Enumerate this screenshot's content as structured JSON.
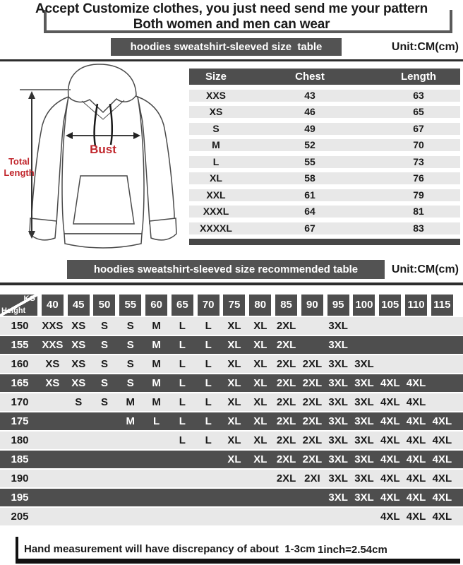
{
  "header": {
    "title_line1": "Accept Customize clothes, you just need send me your pattern",
    "title_line2": "Both women and men can wear"
  },
  "size_table_section": {
    "bar_label": "hoodies sweatshirt-sleeved size  table",
    "unit_label": "Unit:CM(cm)"
  },
  "diagram": {
    "bust_label": "Bust",
    "total_length_line1": "Total",
    "total_length_line2": "Length"
  },
  "size_table": {
    "columns": [
      "Size",
      "Chest",
      "Length"
    ],
    "rows": [
      [
        "XXS",
        "43",
        "63"
      ],
      [
        "XS",
        "46",
        "65"
      ],
      [
        "S",
        "49",
        "67"
      ],
      [
        "M",
        "52",
        "70"
      ],
      [
        "L",
        "55",
        "73"
      ],
      [
        "XL",
        "58",
        "76"
      ],
      [
        "XXL",
        "61",
        "79"
      ],
      [
        "XXXL",
        "64",
        "81"
      ],
      [
        "XXXXL",
        "67",
        "83"
      ]
    ]
  },
  "recommended_section": {
    "bar_label": "hoodies sweatshirt-sleeved size recommended table",
    "unit_label": "Unit:CM(cm)"
  },
  "recommended_table": {
    "corner_top_right": "KG",
    "corner_bottom_left": "Height",
    "weights": [
      "40",
      "45",
      "50",
      "55",
      "60",
      "65",
      "70",
      "75",
      "80",
      "85",
      "90",
      "95",
      "100",
      "105",
      "110",
      "115"
    ],
    "rows": [
      {
        "height": "150",
        "sizes": [
          "XXS",
          "XS",
          "S",
          "S",
          "M",
          "L",
          "L",
          "XL",
          "XL",
          "2XL",
          "",
          "3XL",
          "",
          "",
          "",
          ""
        ]
      },
      {
        "height": "155",
        "sizes": [
          "XXS",
          "XS",
          "S",
          "S",
          "M",
          "L",
          "L",
          "XL",
          "XL",
          "2XL",
          "",
          "3XL",
          "",
          "",
          "",
          ""
        ]
      },
      {
        "height": "160",
        "sizes": [
          "XS",
          "XS",
          "S",
          "S",
          "M",
          "L",
          "L",
          "XL",
          "XL",
          "2XL",
          "2XL",
          "3XL",
          "3XL",
          "",
          "",
          ""
        ]
      },
      {
        "height": "165",
        "sizes": [
          "XS",
          "XS",
          "S",
          "S",
          "M",
          "L",
          "L",
          "XL",
          "XL",
          "2XL",
          "2XL",
          "3XL",
          "3XL",
          "4XL",
          "4XL",
          ""
        ]
      },
      {
        "height": "170",
        "sizes": [
          "",
          "S",
          "S",
          "M",
          "M",
          "L",
          "L",
          "XL",
          "XL",
          "2XL",
          "2XL",
          "3XL",
          "3XL",
          "4XL",
          "4XL",
          ""
        ]
      },
      {
        "height": "175",
        "sizes": [
          "",
          "",
          "",
          "M",
          "L",
          "L",
          "L",
          "XL",
          "XL",
          "2XL",
          "2XL",
          "3XL",
          "3XL",
          "4XL",
          "4XL",
          "4XL"
        ]
      },
      {
        "height": "180",
        "sizes": [
          "",
          "",
          "",
          "",
          "",
          "L",
          "L",
          "XL",
          "XL",
          "2XL",
          "2XL",
          "3XL",
          "3XL",
          "4XL",
          "4XL",
          "4XL"
        ]
      },
      {
        "height": "185",
        "sizes": [
          "",
          "",
          "",
          "",
          "",
          "",
          "",
          "XL",
          "XL",
          "2XL",
          "2XL",
          "3XL",
          "3XL",
          "4XL",
          "4XL",
          "4XL"
        ]
      },
      {
        "height": "190",
        "sizes": [
          "",
          "",
          "",
          "",
          "",
          "",
          "",
          "",
          "",
          "2XL",
          "2XI",
          "3XL",
          "3XL",
          "4XL",
          "4XL",
          "4XL"
        ]
      },
      {
        "height": "195",
        "sizes": [
          "",
          "",
          "",
          "",
          "",
          "",
          "",
          "",
          "",
          "",
          "",
          "3XL",
          "3XL",
          "4XL",
          "4XL",
          "4XL"
        ]
      },
      {
        "height": "205",
        "sizes": [
          "",
          "",
          "",
          "",
          "",
          "",
          "",
          "",
          "",
          "",
          "",
          "",
          "",
          "4XL",
          "4XL",
          "4XL"
        ]
      }
    ]
  },
  "footer": {
    "note": "Hand measurement will have discrepancy of about  1-3cm",
    "conversion": "1inch=2.54cm"
  },
  "colors": {
    "dark_gray": "#4e4e4e",
    "light_row": "#e8e8e8",
    "accent_red": "#c1272d",
    "line_black": "#2d2d2d"
  }
}
